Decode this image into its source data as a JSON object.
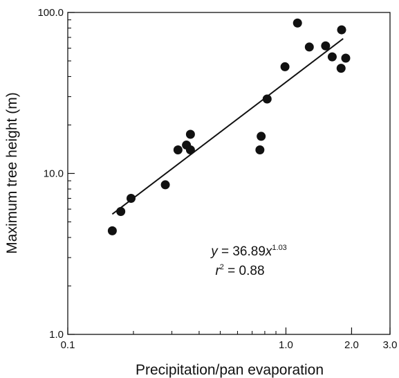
{
  "chart_data": {
    "type": "scatter",
    "title": "",
    "xlabel": "Precipitation/pan evaporation",
    "ylabel": "Maximum tree height (m)",
    "x_scale": "log",
    "y_scale": "log",
    "xlim": [
      0.1,
      3.0
    ],
    "ylim": [
      1.0,
      100.0
    ],
    "x_ticks": [
      {
        "value": 0.1,
        "label": "0.1"
      },
      {
        "value": 1.0,
        "label": "1.0"
      },
      {
        "value": 2.0,
        "label": "2.0"
      },
      {
        "value": 3.0,
        "label": "3.0"
      }
    ],
    "y_ticks": [
      {
        "value": 1.0,
        "label": "1.0"
      },
      {
        "value": 10.0,
        "label": "10.0"
      },
      {
        "value": 100.0,
        "label": "100.0"
      }
    ],
    "grid": false,
    "marker_color": "#111111",
    "points": [
      {
        "x": 0.16,
        "y": 4.4
      },
      {
        "x": 0.175,
        "y": 5.8
      },
      {
        "x": 0.195,
        "y": 7.0
      },
      {
        "x": 0.28,
        "y": 8.5
      },
      {
        "x": 0.32,
        "y": 14.0
      },
      {
        "x": 0.35,
        "y": 15.0
      },
      {
        "x": 0.365,
        "y": 14.0
      },
      {
        "x": 0.365,
        "y": 17.5
      },
      {
        "x": 0.76,
        "y": 14.0
      },
      {
        "x": 0.77,
        "y": 17.0
      },
      {
        "x": 0.82,
        "y": 29.0
      },
      {
        "x": 0.99,
        "y": 46.0
      },
      {
        "x": 1.13,
        "y": 86.0
      },
      {
        "x": 1.28,
        "y": 61.0
      },
      {
        "x": 1.52,
        "y": 62.0
      },
      {
        "x": 1.63,
        "y": 53.0
      },
      {
        "x": 1.79,
        "y": 45.0
      },
      {
        "x": 1.8,
        "y": 78.0
      },
      {
        "x": 1.88,
        "y": 52.0
      }
    ],
    "fit_line": {
      "x_range": [
        0.16,
        1.83
      ],
      "a": 36.89,
      "b": 1.03
    },
    "annotation": {
      "line1": {
        "var": "y",
        "eq": " = 36.89",
        "base": "x",
        "exp": "1.03"
      },
      "line2": {
        "var": "r",
        "exp": "2",
        "eq": " = 0.88"
      }
    }
  }
}
